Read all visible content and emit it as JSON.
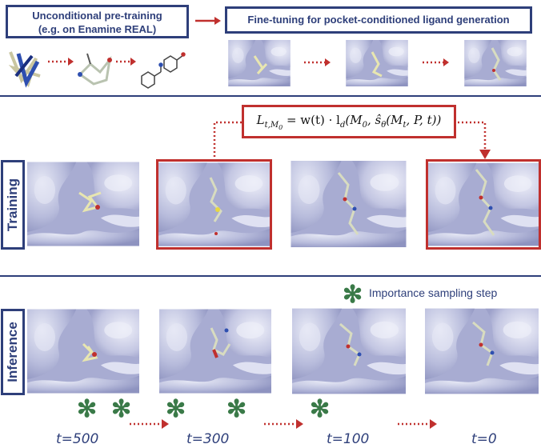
{
  "top": {
    "pretraining_line1": "Unconditional pre-training",
    "pretraining_line2": "(e.g. on Enamine REAL)",
    "finetuning": "Fine-tuning for pocket-conditioned ligand generation"
  },
  "sections": {
    "training": "Training",
    "inference": "Inference"
  },
  "formula": "L",
  "formula_parts": {
    "lhs": "L",
    "lhs_sub": "t,M",
    "lhs_sub2": "0",
    "rhs": " = w(t) · l",
    "d": "d",
    "args": "(M",
    "m0": "0",
    "comma": ", ŝ",
    "theta": "θ",
    "rest": "(M",
    "mt": "t",
    "end": ", P, t))"
  },
  "legend": {
    "importance_label": "Importance sampling step"
  },
  "timesteps": [
    "t=500",
    "t=300",
    "t=100",
    "t=0"
  ],
  "colors": {
    "navy": "#2e3f7a",
    "red": "#c0302e",
    "green": "#3a7a48",
    "surface": "#c5c8e2"
  }
}
